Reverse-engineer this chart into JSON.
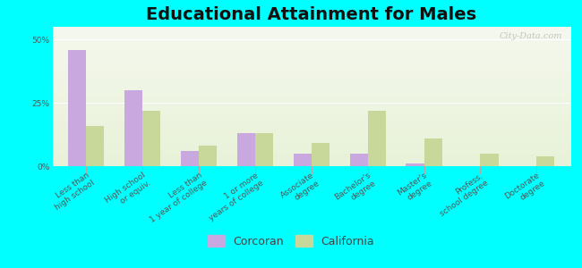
{
  "title": "Educational Attainment for Males",
  "categories": [
    "Less than\nhigh school",
    "High school\nor equiv.",
    "Less than\n1 year of college",
    "1 or more\nyears of college",
    "Associate\ndegree",
    "Bachelor's\ndegree",
    "Master's\ndegree",
    "Profess.\nschool degree",
    "Doctorate\ndegree"
  ],
  "corcoran": [
    46,
    30,
    6,
    13,
    5,
    5,
    1,
    0,
    0
  ],
  "california": [
    16,
    22,
    8,
    13,
    9,
    22,
    11,
    5,
    4
  ],
  "corcoran_color": "#c9a8e0",
  "california_color": "#c8d89a",
  "background_color": "#00ffff",
  "ylim": [
    0,
    55
  ],
  "yticks": [
    0,
    25,
    50
  ],
  "ytick_labels": [
    "0%",
    "25%",
    "50%"
  ],
  "bar_width": 0.32,
  "title_fontsize": 14,
  "tick_fontsize": 6.5,
  "legend_fontsize": 9,
  "watermark": "City-Data.com",
  "plot_grad_top": "#c8d8a0",
  "plot_grad_bottom": "#f5f8ee"
}
